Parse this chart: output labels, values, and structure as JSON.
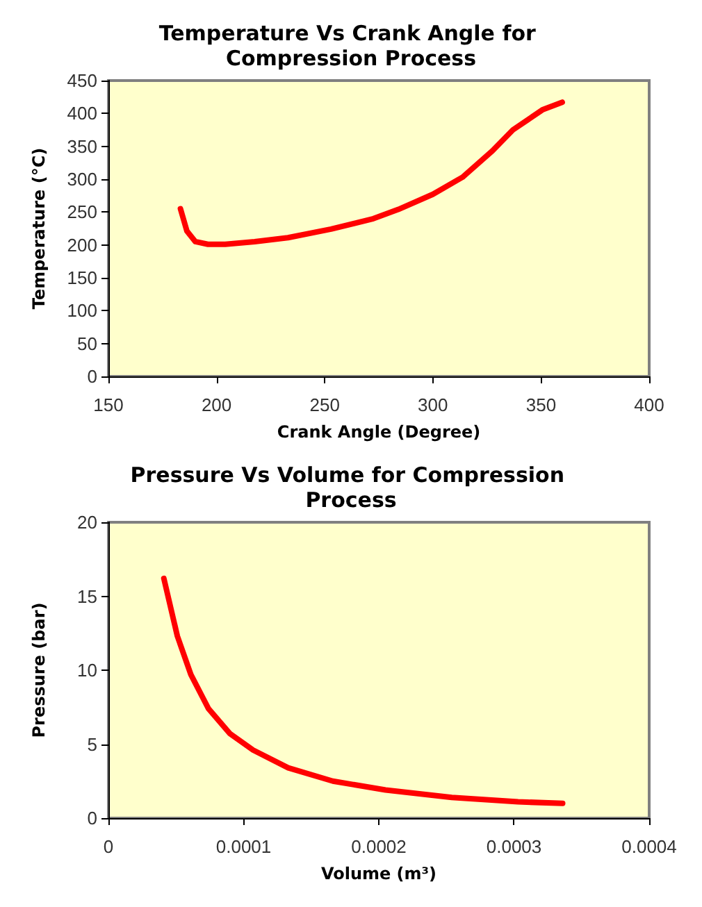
{
  "chart_data": [
    {
      "type": "line",
      "title": "Temperature Vs Crank Angle for Compression Process",
      "xlabel": "Crank Angle (Degree)",
      "ylabel": "Temperature (°C)",
      "xlim": [
        150,
        400
      ],
      "xticks": [
        150,
        200,
        250,
        300,
        350,
        400
      ],
      "ylim": [
        0,
        450
      ],
      "yticks": [
        0,
        50,
        100,
        150,
        200,
        250,
        300,
        350,
        400,
        450
      ],
      "grid": false,
      "marker": "none",
      "line_style": "solid",
      "series": [
        {
          "color": "#ff0000",
          "x": [
            183.3,
            186.3,
            190.2,
            196,
            204,
            217.6,
            233,
            252.9,
            272.5,
            284,
            300,
            313.7,
            327.5,
            337,
            350.9,
            359.8
          ],
          "values": [
            255,
            221,
            205,
            201,
            201,
            205,
            211,
            224,
            240,
            254,
            277,
            303,
            343,
            375,
            406,
            417
          ]
        }
      ]
    },
    {
      "type": "line",
      "title": "Pressure Vs Volume for Compression Process",
      "xlabel": "Volume (m³)",
      "ylabel": "Pressure (bar)",
      "xlim": [
        0,
        0.0004
      ],
      "xticks": [
        0,
        0.0001,
        0.0002,
        0.0003,
        0.0004
      ],
      "ylim": [
        0,
        20
      ],
      "yticks": [
        0,
        5,
        10,
        15,
        20
      ],
      "grid": false,
      "marker": "none",
      "line_style": "solid",
      "series": [
        {
          "color": "#ff0000",
          "x": [
            4.1e-05,
            5.1e-05,
            6.1e-05,
            7.4e-05,
            9e-05,
            0.000107,
            0.000133,
            0.000166,
            0.000205,
            0.000254,
            0.000303,
            0.000336
          ],
          "values": [
            16.2,
            12.3,
            9.7,
            7.4,
            5.7,
            4.6,
            3.4,
            2.5,
            1.9,
            1.4,
            1.1,
            1.0
          ]
        }
      ]
    }
  ]
}
